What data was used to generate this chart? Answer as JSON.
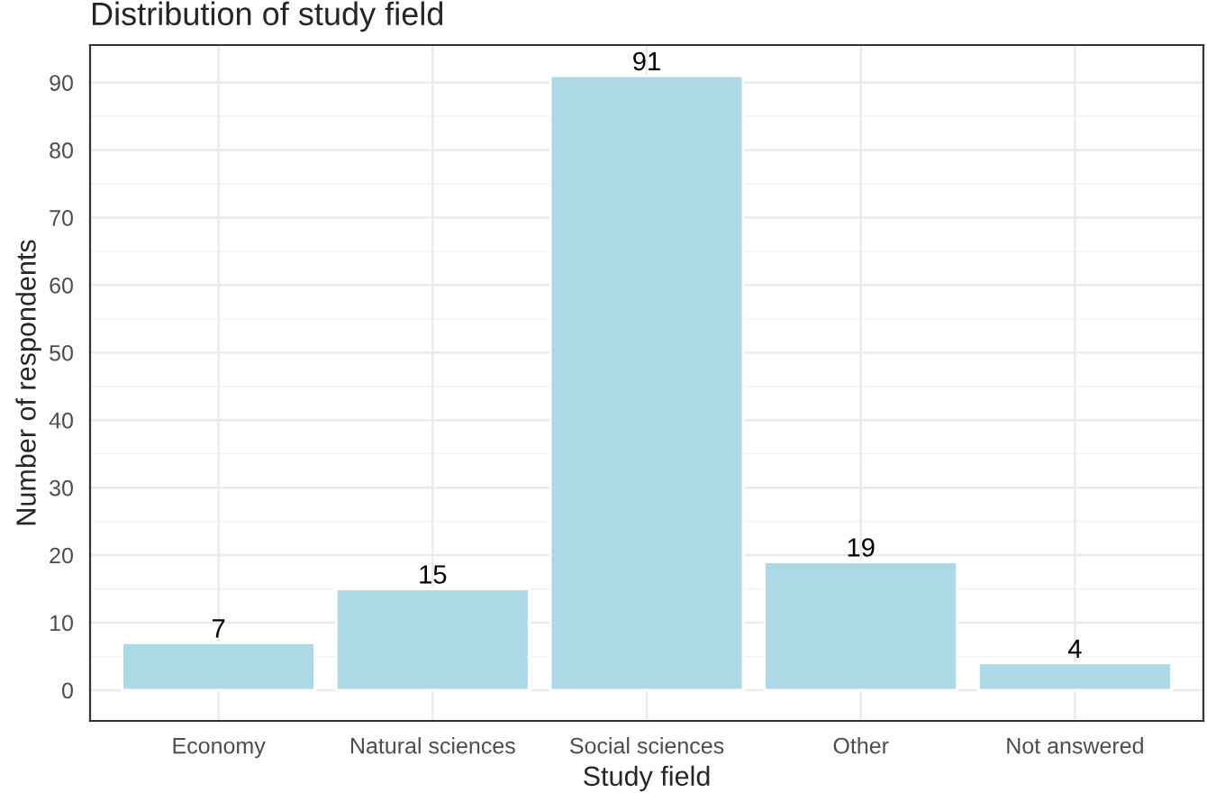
{
  "chart_data": {
    "type": "bar",
    "title": "Distribution of study field",
    "xlabel": "Study field",
    "ylabel": "Number of respondents",
    "categories": [
      "Economy",
      "Natural sciences",
      "Social sciences",
      "Other",
      "Not answered"
    ],
    "values": [
      7,
      15,
      91,
      19,
      4
    ],
    "color": "#add8e6",
    "ylim": [
      -4.55,
      95.55
    ],
    "yticks": [
      0,
      10,
      20,
      30,
      40,
      50,
      60,
      70,
      80,
      90
    ],
    "grid": true,
    "data_labels": true
  }
}
